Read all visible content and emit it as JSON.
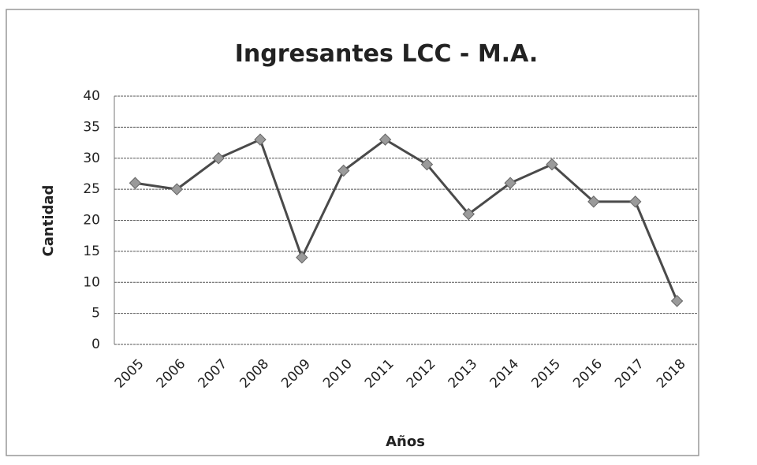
{
  "chart_data": {
    "type": "line",
    "title": "Ingresantes LCC - M.A.",
    "x_label": "Años",
    "y_label": "Cantidad",
    "categories": [
      "2005",
      "2006",
      "2007",
      "2008",
      "2009",
      "2010",
      "2011",
      "2012",
      "2013",
      "2014",
      "2015",
      "2016",
      "2017",
      "2018"
    ],
    "series": [
      {
        "name": "Ingresantes",
        "color": "#4a4a4a",
        "values": [
          26,
          25,
          30,
          33,
          14,
          28,
          33,
          29,
          21,
          26,
          29,
          23,
          23,
          7
        ]
      }
    ],
    "ylim": [
      0,
      40
    ],
    "yticks": [
      0,
      5,
      10,
      15,
      20,
      25,
      30,
      35,
      40
    ],
    "grid": true,
    "legend": false
  }
}
